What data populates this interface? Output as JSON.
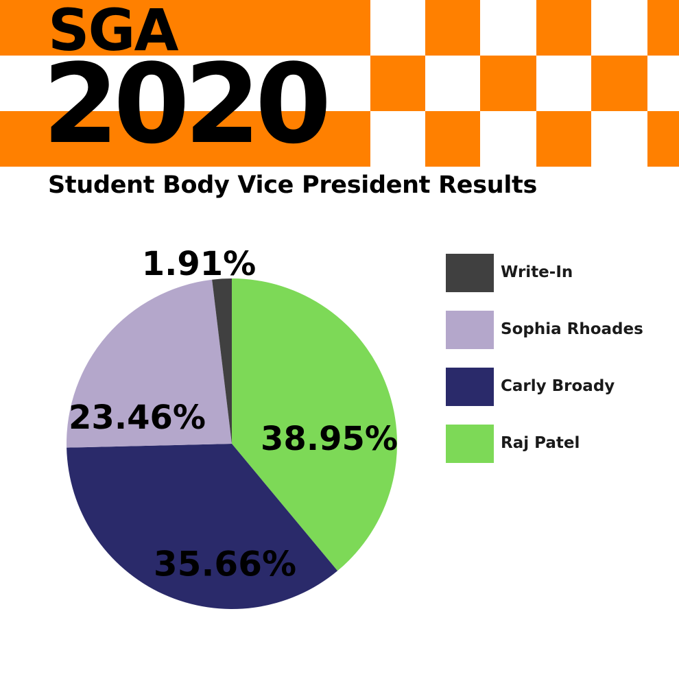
{
  "header": {
    "title": "SGA",
    "year": "2020",
    "accent_color": "#ff8000"
  },
  "chart_data": {
    "type": "pie",
    "title": "Student Body Vice President Results",
    "slices": [
      {
        "name": "Raj Patel",
        "value": 38.95,
        "label": "38.95%",
        "color": "#7dd957"
      },
      {
        "name": "Carly Broady",
        "value": 35.66,
        "label": "35.66%",
        "color": "#2a2a6a"
      },
      {
        "name": "Sophia Rhoades",
        "value": 23.46,
        "label": "23.46%",
        "color": "#b4a7cb"
      },
      {
        "name": "Write-In",
        "value": 1.91,
        "label": "1.91%",
        "color": "#404040"
      }
    ],
    "legend": {
      "position": "right",
      "entries": [
        {
          "name": "Write-In",
          "color": "#404040"
        },
        {
          "name": "Sophia Rhoades",
          "color": "#b4a7cb"
        },
        {
          "name": "Carly Broady",
          "color": "#2a2a6a"
        },
        {
          "name": "Raj Patel",
          "color": "#7dd957"
        }
      ]
    }
  }
}
